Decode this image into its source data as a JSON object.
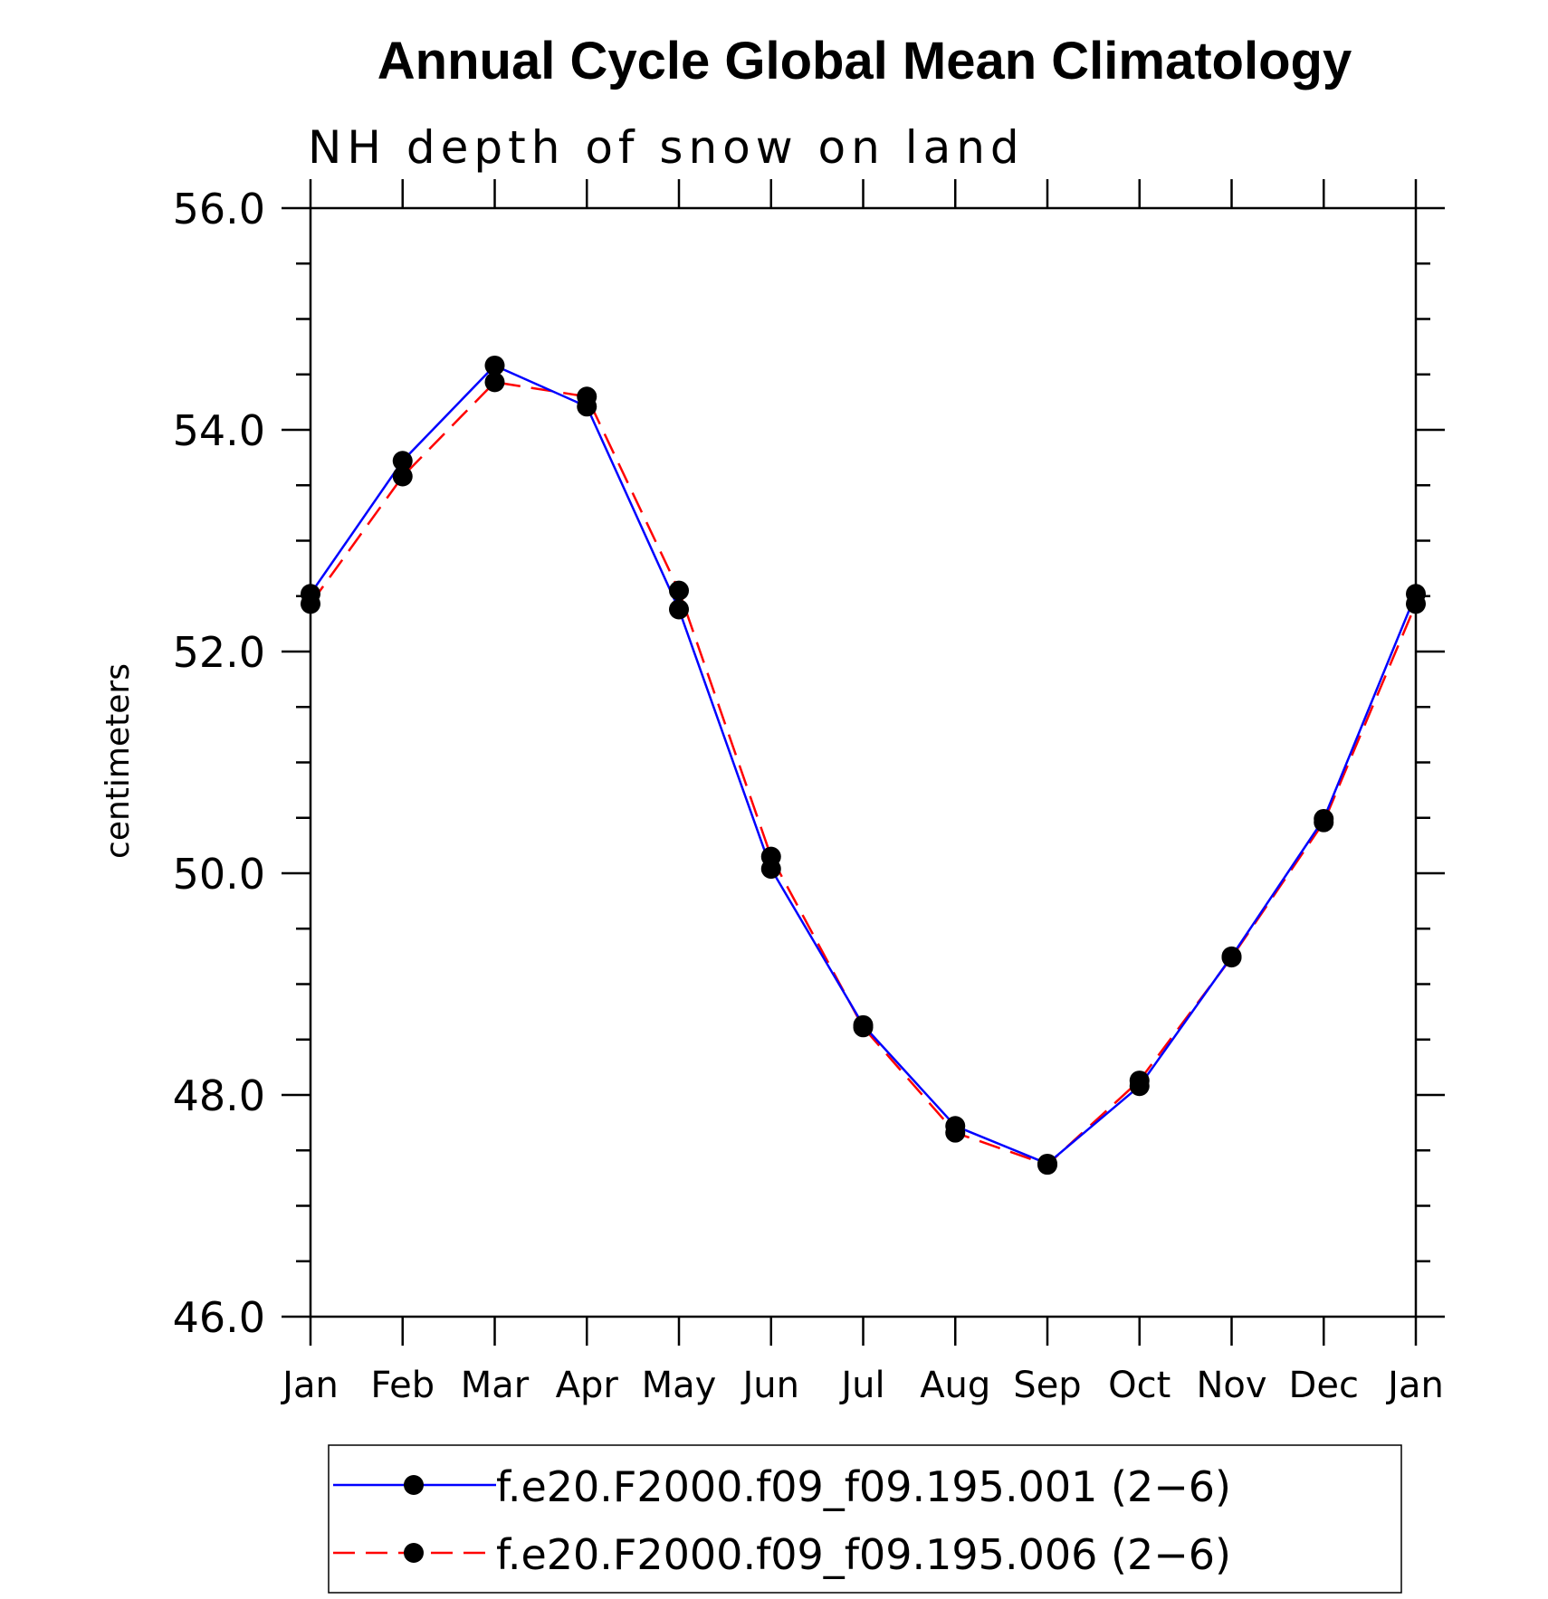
{
  "chart_data": {
    "type": "line",
    "title": "Annual Cycle Global Mean Climatology",
    "subtitle": "NH depth of snow on land",
    "ylabel": "centimeters",
    "xlabel": "",
    "categories": [
      "Jan",
      "Feb",
      "Mar",
      "Apr",
      "May",
      "Jun",
      "Jul",
      "Aug",
      "Sep",
      "Oct",
      "Nov",
      "Dec",
      "Jan"
    ],
    "ylim": [
      46.0,
      56.0
    ],
    "yticks": [
      "46.0",
      "48.0",
      "50.0",
      "52.0",
      "54.0",
      "56.0"
    ],
    "series": [
      {
        "name": "f.e20.F2000.f09_f09.195.001 (2−6)",
        "color": "#0000ff",
        "dash": "solid",
        "marker": "filled-circle",
        "values": [
          52.52,
          53.72,
          54.58,
          54.21,
          52.38,
          50.04,
          48.63,
          47.72,
          47.38,
          48.08,
          49.25,
          50.49,
          52.52
        ]
      },
      {
        "name": "f.e20.F2000.f09_f09.195.006 (2−6)",
        "color": "#ff0000",
        "dash": "dashed",
        "marker": "filled-circle",
        "values": [
          52.43,
          53.58,
          54.43,
          54.3,
          52.55,
          50.15,
          48.61,
          47.66,
          47.37,
          48.13,
          49.24,
          50.46,
          52.43
        ]
      }
    ],
    "grid": false,
    "legend_position": "bottom"
  }
}
